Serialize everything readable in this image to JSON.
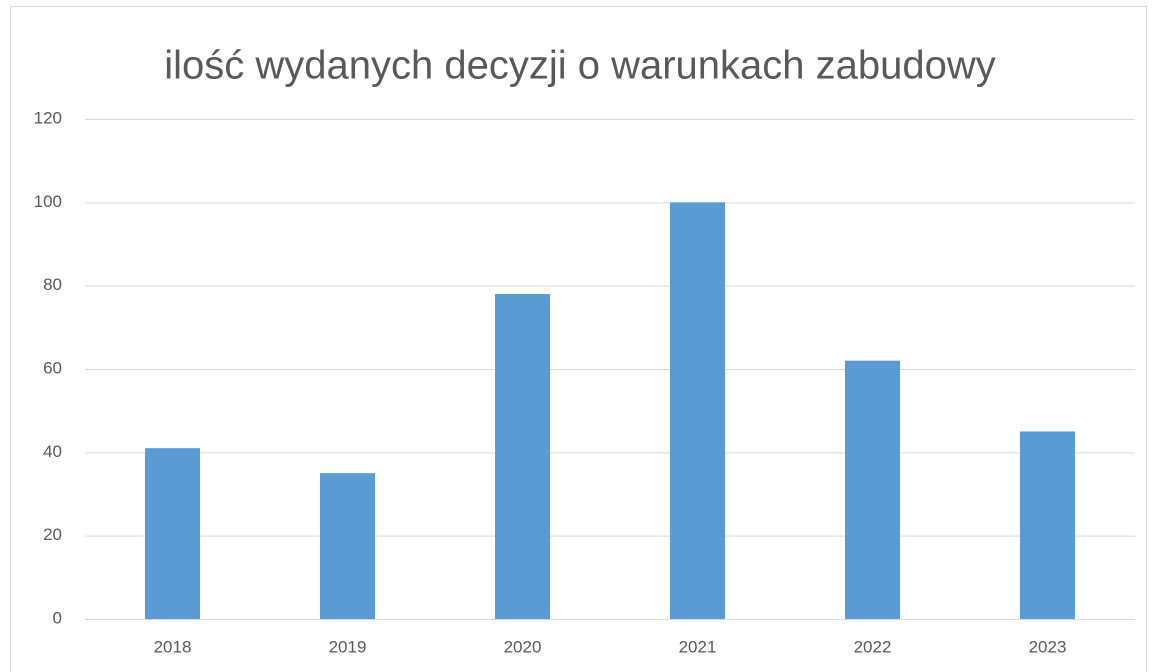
{
  "chart_data": {
    "type": "bar",
    "title": "ilość wydanych decyzji o warunkach zabudowy",
    "categories": [
      "2018",
      "2019",
      "2020",
      "2021",
      "2022",
      "2023"
    ],
    "values": [
      41,
      35,
      78,
      100,
      62,
      45
    ],
    "color": "#5b9bd5",
    "ylim": [
      0,
      120
    ],
    "yticks": [
      0,
      20,
      40,
      60,
      80,
      100,
      120
    ],
    "grid": true
  }
}
